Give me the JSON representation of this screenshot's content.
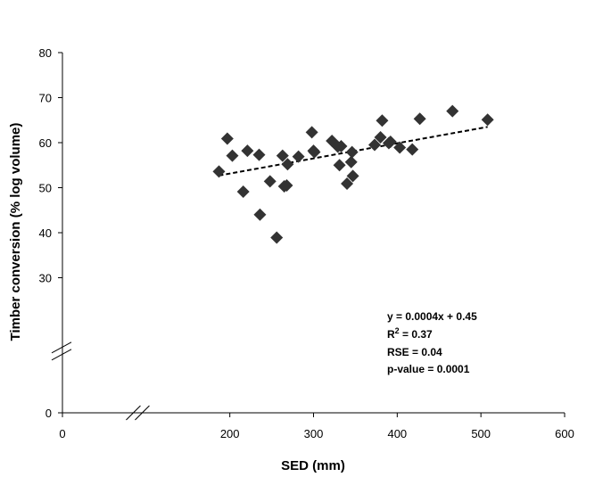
{
  "chart_data": {
    "type": "scatter",
    "title": "",
    "xlabel": "SED (mm)",
    "ylabel": "Timber conversion (% log volume)",
    "x_ticks": [
      0,
      200,
      300,
      400,
      500,
      600
    ],
    "y_ticks": [
      0,
      30,
      40,
      50,
      60,
      70,
      80
    ],
    "xlim": [
      0,
      600
    ],
    "ylim": [
      0,
      80
    ],
    "x_axis_break": [
      0,
      180
    ],
    "y_axis_break": [
      0,
      27
    ],
    "grid": false,
    "marker_color": "#333333",
    "trendline_color": "#000000",
    "points": [
      {
        "x": 187,
        "y": 53.6
      },
      {
        "x": 197,
        "y": 60.9
      },
      {
        "x": 203,
        "y": 57.1
      },
      {
        "x": 216,
        "y": 49.1
      },
      {
        "x": 221,
        "y": 58.2
      },
      {
        "x": 235,
        "y": 57.3
      },
      {
        "x": 236,
        "y": 44.0
      },
      {
        "x": 248,
        "y": 51.4
      },
      {
        "x": 256,
        "y": 38.9
      },
      {
        "x": 263,
        "y": 57.1
      },
      {
        "x": 265,
        "y": 50.3
      },
      {
        "x": 268,
        "y": 50.5
      },
      {
        "x": 269,
        "y": 55.2
      },
      {
        "x": 282,
        "y": 56.9
      },
      {
        "x": 298,
        "y": 62.3
      },
      {
        "x": 300,
        "y": 58.2
      },
      {
        "x": 301,
        "y": 57.9
      },
      {
        "x": 322,
        "y": 60.4
      },
      {
        "x": 329,
        "y": 59.1
      },
      {
        "x": 331,
        "y": 55.0
      },
      {
        "x": 333,
        "y": 59.2
      },
      {
        "x": 340,
        "y": 50.9
      },
      {
        "x": 345,
        "y": 55.7
      },
      {
        "x": 346,
        "y": 57.9
      },
      {
        "x": 347,
        "y": 52.6
      },
      {
        "x": 373,
        "y": 59.5
      },
      {
        "x": 380,
        "y": 61.2
      },
      {
        "x": 382,
        "y": 64.9
      },
      {
        "x": 390,
        "y": 59.9
      },
      {
        "x": 392,
        "y": 60.2
      },
      {
        "x": 403,
        "y": 58.9
      },
      {
        "x": 418,
        "y": 58.5
      },
      {
        "x": 427,
        "y": 65.3
      },
      {
        "x": 466,
        "y": 67.0
      },
      {
        "x": 508,
        "y": 65.1
      }
    ],
    "trendline": {
      "style": "dashed",
      "x": [
        187,
        508
      ],
      "y": [
        52.7,
        63.5
      ]
    },
    "annotation_lines": [
      "y = 0.0004x + 0.45",
      "R",
      "2",
      " = 0.37",
      "RSE = 0.04",
      "p-value = 0.0001"
    ]
  }
}
